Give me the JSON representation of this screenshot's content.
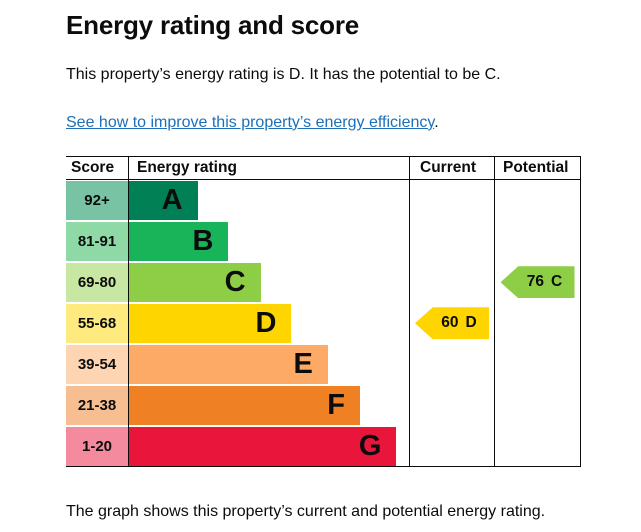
{
  "page": {
    "title": "Energy rating and score",
    "intro": "This property’s energy rating is D. It has the potential to be C.",
    "improve_link": "See how to improve this property’s energy efficiency",
    "improve_link_suffix": ".",
    "caption": "The graph shows this property’s current and potential energy rating."
  },
  "chart_data": {
    "type": "bar",
    "title": "Energy rating and score",
    "headers": {
      "score": "Score",
      "rating": "Energy rating",
      "current": "Current",
      "potential": "Potential"
    },
    "bands": [
      {
        "score": "92+",
        "letter": "A",
        "color": "#008054",
        "tint": "#79c3a5",
        "width_percent": 24.5
      },
      {
        "score": "81-91",
        "letter": "B",
        "color": "#19b459",
        "tint": "#8ed9a6",
        "width_percent": 35.5
      },
      {
        "score": "69-80",
        "letter": "C",
        "color": "#8dce46",
        "tint": "#c8e7a3",
        "width_percent": 47
      },
      {
        "score": "55-68",
        "letter": "D",
        "color": "#ffd500",
        "tint": "#ffea80",
        "width_percent": 58
      },
      {
        "score": "39-54",
        "letter": "E",
        "color": "#fcaa65",
        "tint": "#fdd5b2",
        "width_percent": 71
      },
      {
        "score": "21-38",
        "letter": "F",
        "color": "#ef8023",
        "tint": "#f7bf91",
        "width_percent": 82.5
      },
      {
        "score": "1-20",
        "letter": "G",
        "color": "#e9153b",
        "tint": "#f48a9d",
        "width_percent": 95.5
      }
    ],
    "current": {
      "value": "60",
      "band": "D",
      "color": "#ffd500",
      "band_index": 3
    },
    "potential": {
      "value": "76",
      "band": "C",
      "color": "#8dce46",
      "band_index": 2
    }
  }
}
